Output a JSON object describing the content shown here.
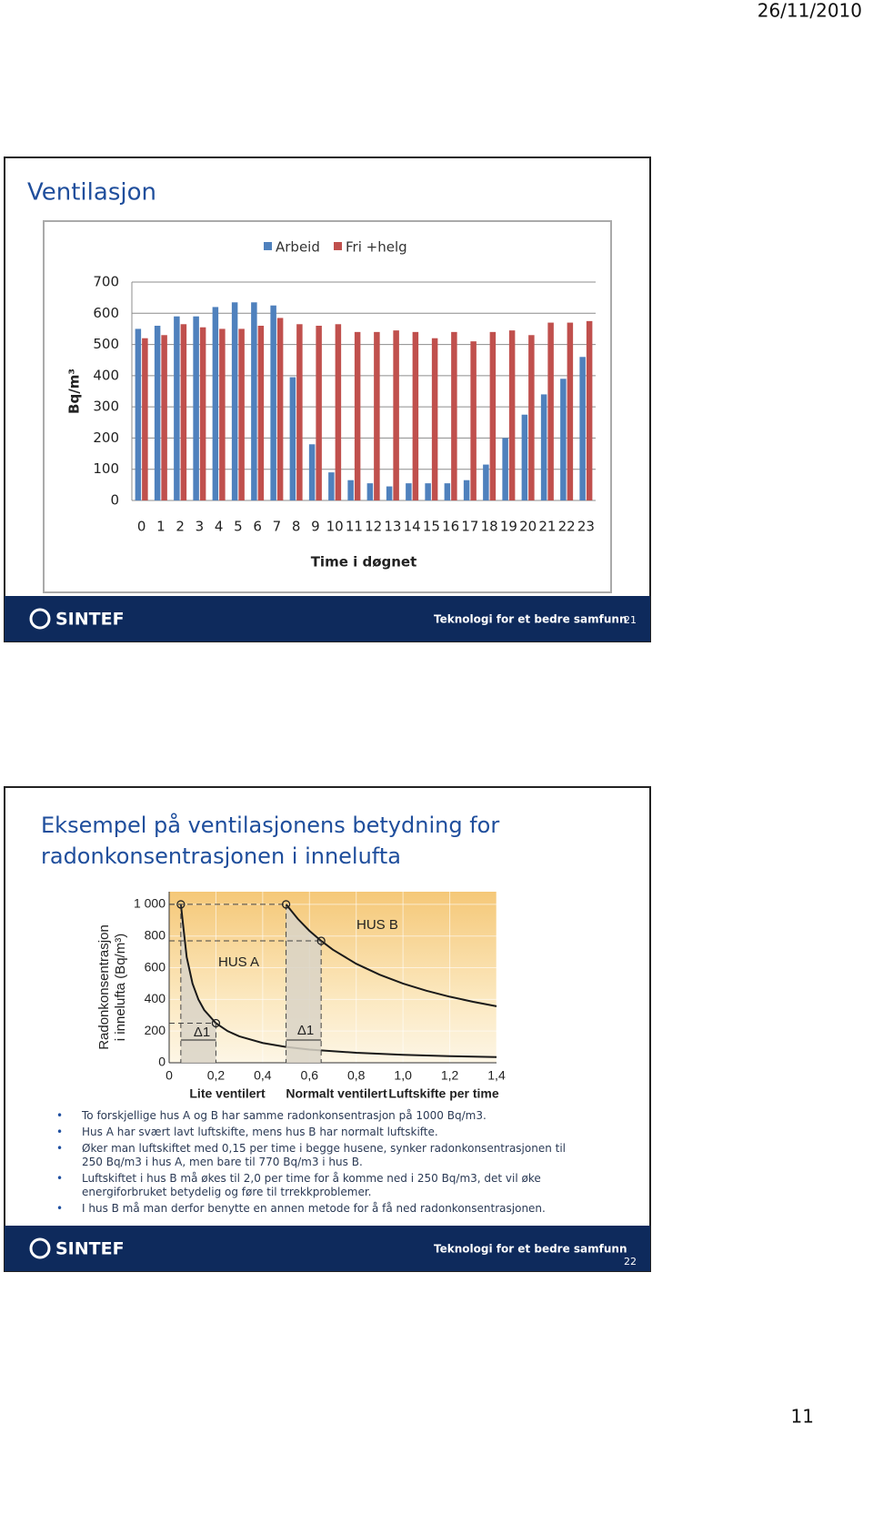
{
  "date": "26/11/2010",
  "page_number": "11",
  "slides": [
    {
      "title": "Ventilasjon",
      "logo": "SINTEF",
      "footer": "Teknologi for et bedre samfunn",
      "number": "21"
    },
    {
      "title_lines": [
        "Eksempel på ventilasjonens betydning for",
        "radonkonsentrasjonen i innelufta"
      ],
      "bullets": [
        "To forskjellige hus A og B har samme radonkonsentrasjon på 1000 Bq/m3.",
        "Hus A har svært lavt luftskifte, mens hus B har normalt luftskifte.",
        "Øker man luftskiftet med 0,15 per time i begge husene, synker radonkonsentrasjonen til 250 Bq/m3 i hus A, men bare til 770 Bq/m3 i hus B.",
        "Luftskiftet i hus B må økes til 2,0 per time for å komme ned i 250 Bq/m3, det vil øke energiforbruket betydelig og føre til trrekkproblemer.",
        "I hus B må man derfor benytte en annen metode for å få ned radonkonsentrasjonen."
      ],
      "logo": "SINTEF",
      "footer": "Teknologi for et bedre samfunn",
      "number": "22"
    }
  ],
  "chart_data": [
    {
      "type": "bar",
      "y_label": "Bq/m³",
      "x_label": "Time i døgnet",
      "categories": [
        "0",
        "1",
        "2",
        "3",
        "4",
        "5",
        "6",
        "7",
        "8",
        "9",
        "10",
        "11",
        "12",
        "13",
        "14",
        "15",
        "16",
        "17",
        "18",
        "19",
        "20",
        "21",
        "22",
        "23"
      ],
      "series": [
        {
          "name": "Arbeid",
          "color": "#4f81bd",
          "values": [
            550,
            560,
            590,
            590,
            620,
            635,
            635,
            625,
            395,
            180,
            90,
            65,
            55,
            45,
            55,
            55,
            55,
            65,
            115,
            200,
            275,
            340,
            390,
            460
          ]
        },
        {
          "name": "Fri +helg",
          "color": "#c0504d",
          "values": [
            520,
            530,
            565,
            555,
            550,
            550,
            560,
            585,
            565,
            560,
            565,
            540,
            540,
            545,
            540,
            520,
            540,
            510,
            540,
            545,
            530,
            570,
            570,
            575
          ]
        }
      ],
      "ylim": [
        0,
        700
      ],
      "yticks": [
        0,
        100,
        200,
        300,
        400,
        500,
        600,
        700
      ],
      "grid": true,
      "legend": "top"
    },
    {
      "type": "line",
      "y_label": [
        "Radonkonsentrasjon",
        "i innelufta (Bq/m³)"
      ],
      "x_label": "Luftskifte per time",
      "annotations": [
        "Lite ventilert",
        "Normalt ventilert",
        "Δ1",
        "Δ1"
      ],
      "series": [
        {
          "name": "HUS A",
          "color": "#1a1a1a",
          "highlight": [
            0,
            5
          ],
          "x": [
            0.05,
            0.075,
            0.1,
            0.125,
            0.15,
            0.2,
            0.25,
            0.3,
            0.4,
            0.5,
            0.6,
            0.8,
            1.0,
            1.2,
            1.4
          ],
          "values": [
            1000,
            667,
            500,
            400,
            333,
            250,
            200,
            167,
            125,
            100,
            83,
            63,
            50,
            42,
            36
          ]
        },
        {
          "name": "HUS B",
          "color": "#1a1a1a",
          "highlight": [
            0,
            3
          ],
          "x": [
            0.5,
            0.55,
            0.6,
            0.65,
            0.7,
            0.8,
            0.9,
            1.0,
            1.1,
            1.2,
            1.3,
            1.4
          ],
          "values": [
            1000,
            909,
            833,
            770,
            714,
            625,
            556,
            500,
            455,
            417,
            385,
            357
          ]
        }
      ],
      "xlim": [
        0,
        1.4
      ],
      "ylim": [
        0,
        1080
      ],
      "xticks": [
        0,
        {
          "value": 0.2,
          "label": "0,2"
        },
        {
          "value": 0.4,
          "label": "0,4"
        },
        {
          "value": 0.6,
          "label": "0,6"
        },
        {
          "value": 0.8,
          "label": "0,8"
        },
        {
          "value": 1,
          "label": "1,0"
        },
        {
          "value": 1.2,
          "label": "1,2"
        },
        {
          "value": 1.4,
          "label": "1,4"
        }
      ],
      "yticks": [
        0,
        200,
        400,
        600,
        800,
        {
          "value": 1000,
          "label": "1 000"
        }
      ],
      "grid": true
    }
  ]
}
